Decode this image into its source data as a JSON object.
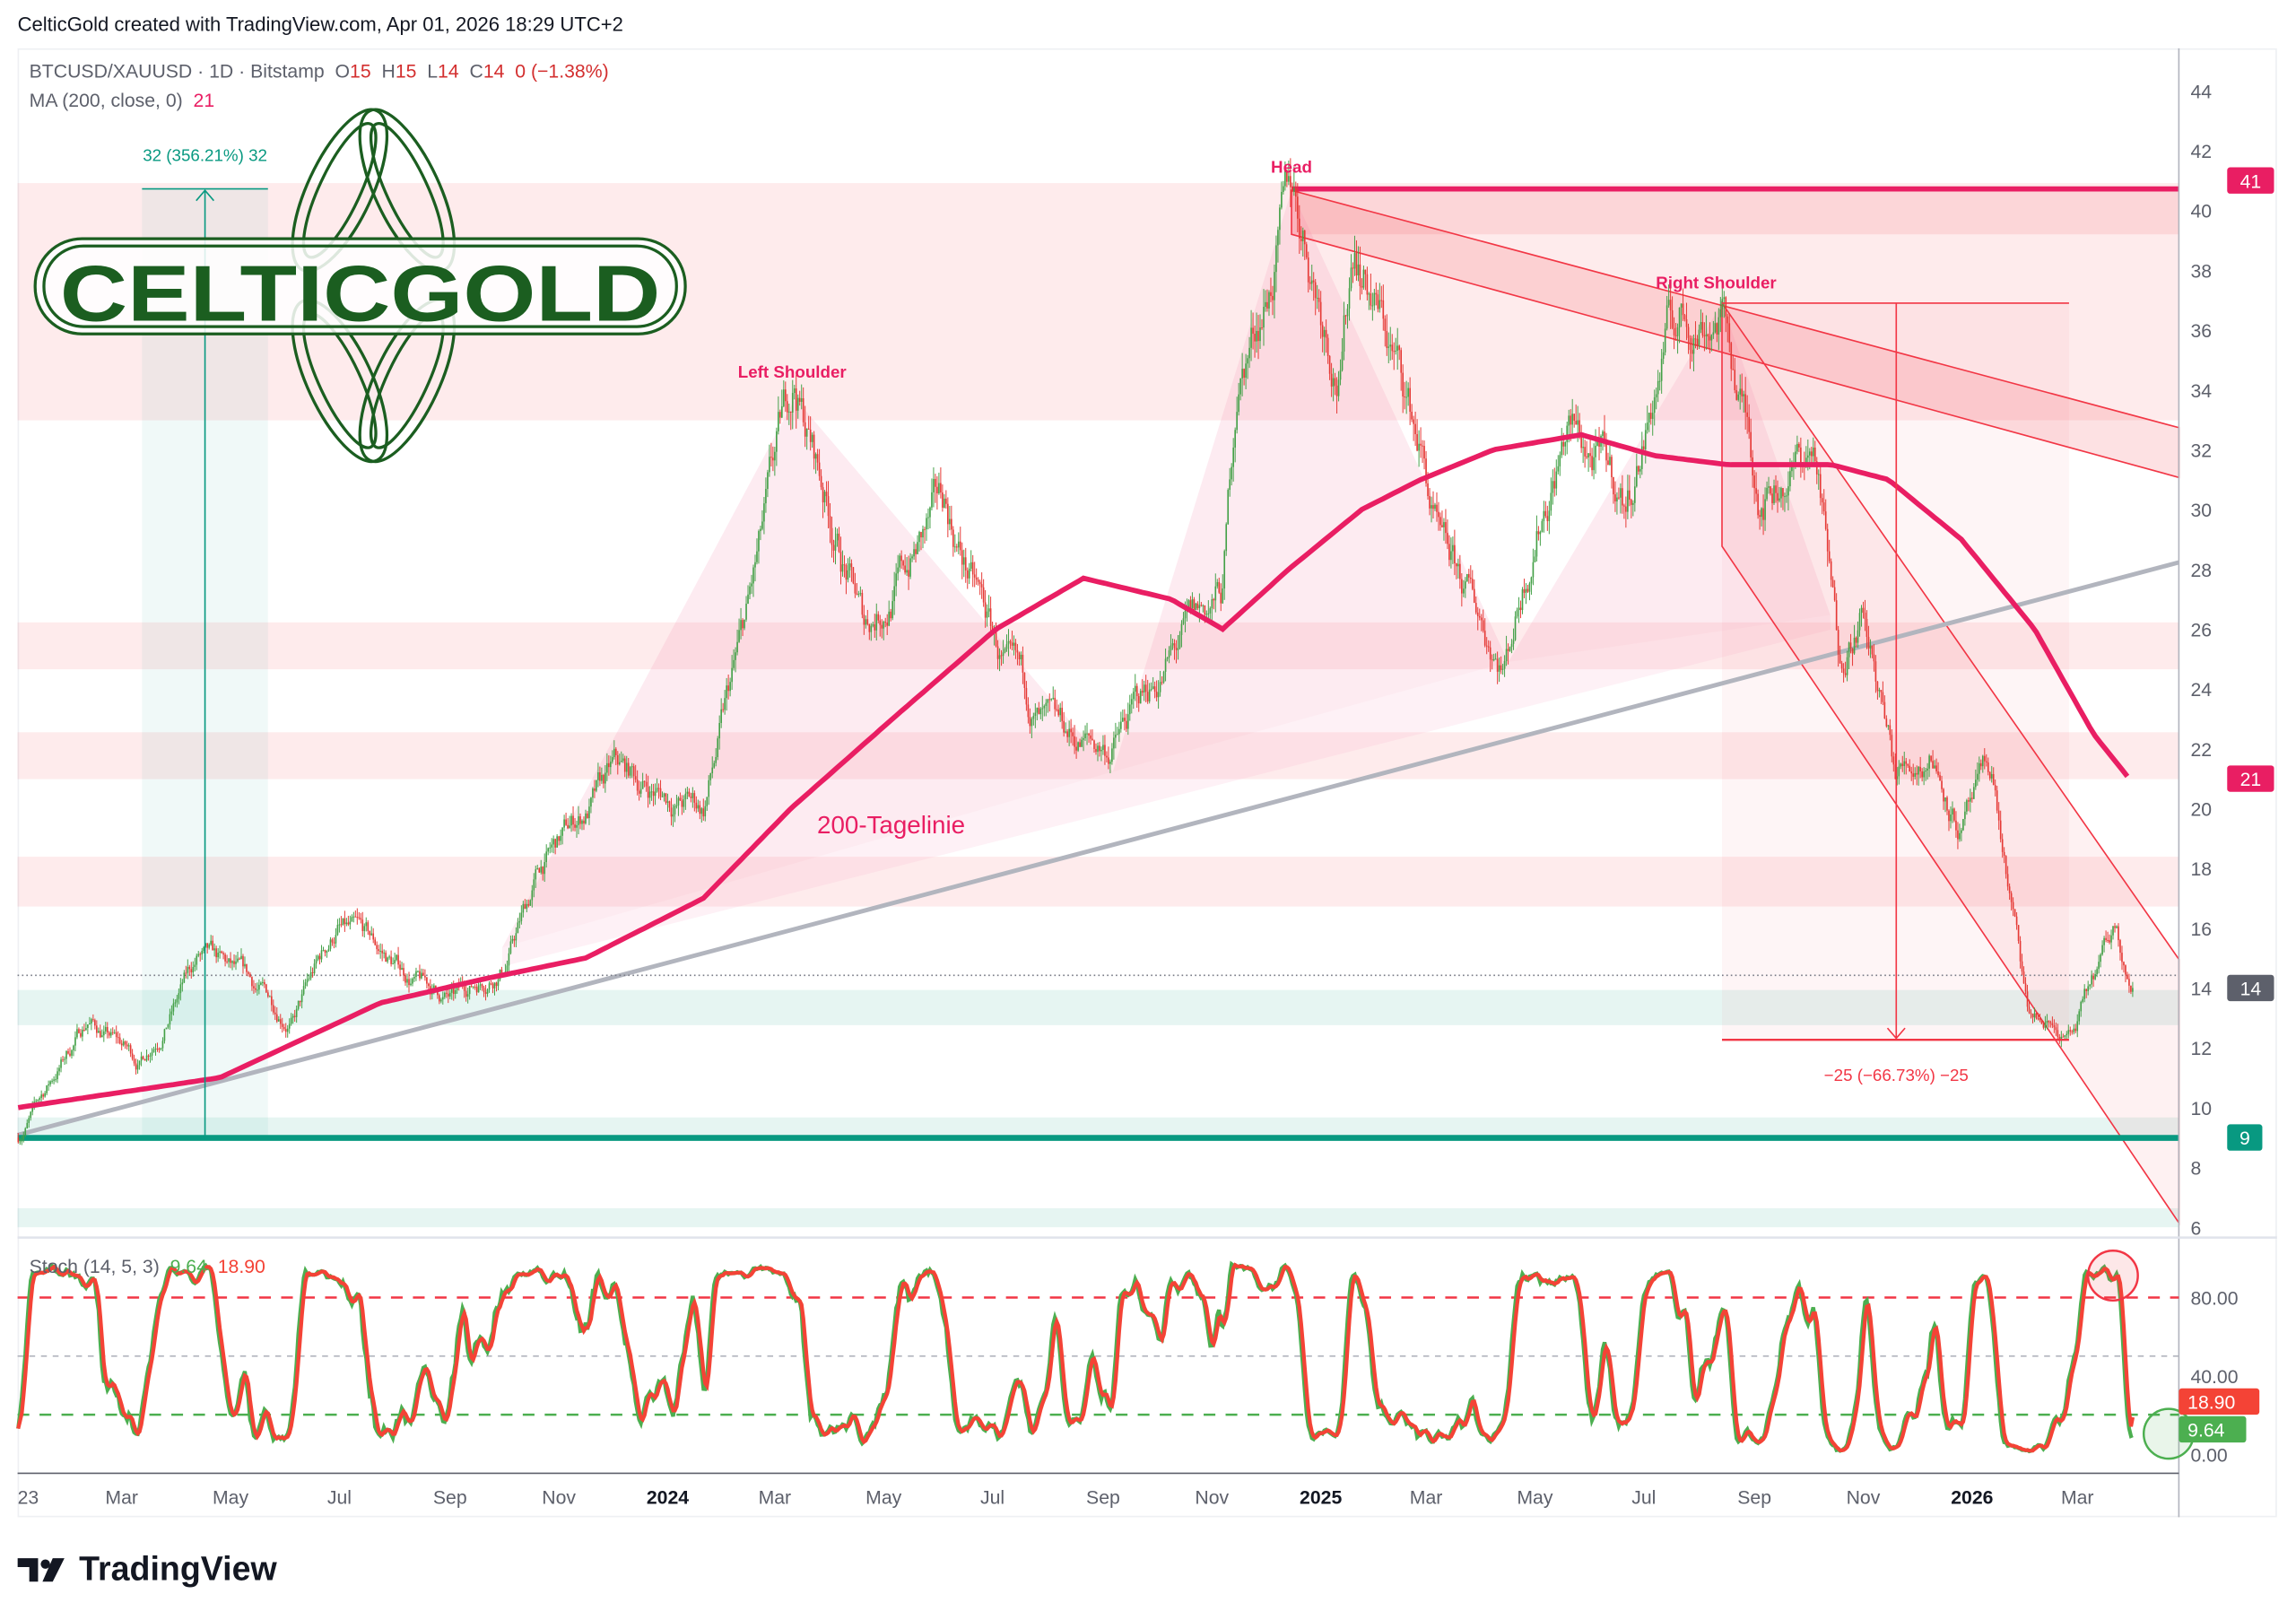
{
  "attribution": "CelticGold created with TradingView.com, Apr 01, 2026 18:29 UTC+2",
  "legend": {
    "symbol": "BTCUSD/XAUUSD · 1D · Bitstamp",
    "o_label": "O",
    "o": "15",
    "h_label": "H",
    "h": "15",
    "l_label": "L",
    "l": "14",
    "c_label": "C",
    "c": "14",
    "change": "0 (−1.38%)",
    "ma_label": "MA (200, close, 0)",
    "ma_value": "21",
    "stoch_label": "Stoch (14, 5, 3)",
    "stoch_k": "9.64",
    "stoch_d": "18.90"
  },
  "logo": {
    "text": "CELTICGOLD",
    "color": "#1b5e20"
  },
  "footer": {
    "brand": "TradingView",
    "icon": "tradingview-logo-icon"
  },
  "colors": {
    "up": "#43a047",
    "down": "#e53935",
    "ma": "#e91e63",
    "teal": "#089981",
    "stoch_k": "#4caf50",
    "stoch_d": "#f44336",
    "zone": "#f23645"
  },
  "chart_data": {
    "type": "candlestick",
    "symbol": "BTCUSD/XAUUSD",
    "interval": "1D",
    "ylim": [
      6,
      45
    ],
    "y_ticks": [
      "44",
      "42",
      "40",
      "38",
      "36",
      "34",
      "32",
      "30",
      "28",
      "26",
      "24",
      "22",
      "20",
      "18",
      "16",
      "14",
      "12",
      "10",
      "8",
      "6"
    ],
    "x_ticks": [
      "23",
      "Mar",
      "May",
      "Jul",
      "Sep",
      "Nov",
      "2024",
      "Mar",
      "May",
      "Jul",
      "Sep",
      "Nov",
      "2025",
      "Mar",
      "May",
      "Jul",
      "Sep",
      "Nov",
      "2026",
      "Mar"
    ],
    "x_tick_dates": [
      "2023-01-01",
      "2023-03-01",
      "2023-05-01",
      "2023-07-01",
      "2023-09-01",
      "2023-11-01",
      "2024-01-01",
      "2024-03-01",
      "2024-05-01",
      "2024-07-01",
      "2024-09-01",
      "2024-11-01",
      "2025-01-01",
      "2025-03-01",
      "2025-05-01",
      "2025-07-01",
      "2025-09-01",
      "2025-11-01",
      "2026-01-01",
      "2026-03-01"
    ],
    "price_path": [
      [
        "2023-01-02",
        9
      ],
      [
        "2023-02-10",
        13
      ],
      [
        "2023-03-11",
        11.5
      ],
      [
        "2023-04-13",
        15
      ],
      [
        "2023-06-05",
        13
      ],
      [
        "2023-06-30",
        16
      ],
      [
        "2023-08-18",
        14
      ],
      [
        "2023-09-03",
        13.5
      ],
      [
        "2023-10-02",
        15
      ],
      [
        "2023-10-22",
        18
      ],
      [
        "2023-12-02",
        21
      ],
      [
        "2024-01-21",
        20
      ],
      [
        "2024-02-14",
        26
      ],
      [
        "2024-03-12",
        34
      ],
      [
        "2024-04-20",
        26
      ],
      [
        "2024-06-04",
        30
      ],
      [
        "2024-07-11",
        24
      ],
      [
        "2024-08-05",
        22
      ],
      [
        "2024-09-05",
        22
      ],
      [
        "2024-10-09",
        25
      ],
      [
        "2024-11-07",
        27
      ],
      [
        "2024-11-15",
        34
      ],
      [
        "2024-12-16",
        40.5
      ],
      [
        "2025-01-12",
        35
      ],
      [
        "2025-01-20",
        39.5
      ],
      [
        "2025-02-26",
        32
      ],
      [
        "2025-03-10",
        28
      ],
      [
        "2025-04-14",
        25
      ],
      [
        "2025-05-02",
        30
      ],
      [
        "2025-05-19",
        33
      ],
      [
        "2025-06-21",
        30
      ],
      [
        "2025-07-15",
        36
      ],
      [
        "2025-08-13",
        37
      ],
      [
        "2025-09-03",
        31
      ],
      [
        "2025-10-05",
        32
      ],
      [
        "2025-10-18",
        25
      ],
      [
        "2025-10-30",
        27
      ],
      [
        "2025-11-19",
        21
      ],
      [
        "2025-12-10",
        22
      ],
      [
        "2025-12-26",
        19.5
      ],
      [
        "2026-01-12",
        21
      ],
      [
        "2026-02-01",
        13
      ],
      [
        "2026-02-26",
        12.3
      ],
      [
        "2026-03-23",
        16
      ],
      [
        "2026-04-01",
        14
      ]
    ],
    "ma200_path": [
      [
        "2023-01-02",
        10
      ],
      [
        "2023-04-25",
        11
      ],
      [
        "2023-07-24",
        13.5
      ],
      [
        "2023-09-20",
        14.3
      ],
      [
        "2023-11-16",
        15
      ],
      [
        "2024-01-21",
        17
      ],
      [
        "2024-03-10",
        20
      ],
      [
        "2024-05-06",
        23
      ],
      [
        "2024-07-03",
        26
      ],
      [
        "2024-08-21",
        27.7
      ],
      [
        "2024-10-09",
        27
      ],
      [
        "2024-11-07",
        26
      ],
      [
        "2024-12-14",
        28
      ],
      [
        "2025-01-24",
        30
      ],
      [
        "2025-02-26",
        31
      ],
      [
        "2025-04-08",
        32
      ],
      [
        "2025-05-27",
        32.5
      ],
      [
        "2025-07-07",
        31.8
      ],
      [
        "2025-08-17",
        31.5
      ],
      [
        "2025-10-14",
        31.5
      ],
      [
        "2025-11-15",
        31
      ],
      [
        "2025-12-26",
        29
      ],
      [
        "2026-02-05",
        26
      ],
      [
        "2026-03-10",
        22.5
      ],
      [
        "2026-03-30",
        21
      ]
    ],
    "last": {
      "open": 15,
      "high": 15,
      "low": 14,
      "close": 14,
      "change_pct": -1.38
    },
    "price_badges": [
      {
        "value": "41",
        "color": "#e91e63"
      },
      {
        "value": "21",
        "color": "#e91e63"
      },
      {
        "value": "14",
        "color": "#5d606b"
      },
      {
        "value": "9",
        "color": "#089981"
      }
    ],
    "annotations": {
      "head": "Head",
      "left_shoulder": "Left Shoulder",
      "right_shoulder": "Right Shoulder",
      "ma_label": "200-Tagelinie",
      "measure_up": "32 (356.21%) 32",
      "measure_down": "−25 (−66.73%) −25"
    },
    "stochastic": {
      "params": "14, 5, 3",
      "k": 9.64,
      "d": 18.9,
      "ylim": [
        0,
        100
      ],
      "y_ticks": [
        "80.00",
        "40.00",
        "0.00"
      ],
      "levels": [
        80,
        50,
        20
      ],
      "k_badge": "9.64",
      "d_badge": "18.90"
    }
  }
}
